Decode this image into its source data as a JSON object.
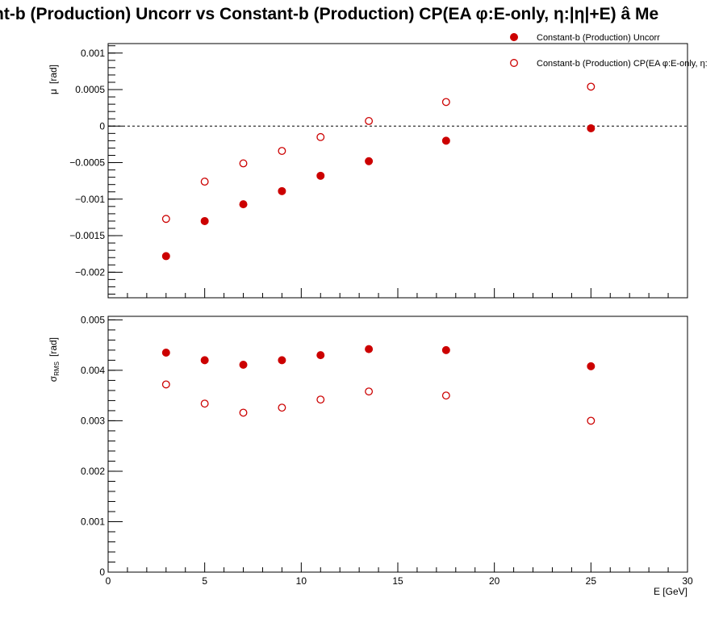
{
  "chart_data": {
    "type": "scatter",
    "title": "nt-b (Production) Uncorr vs Constant-b (Production) CP(EA φ:E-only, η:|η|+E)  â  Me",
    "xlabel": "E  [GeV]",
    "xlim": [
      0,
      30
    ],
    "x_ticks": [
      "0",
      "5",
      "10",
      "15",
      "20",
      "25",
      "30"
    ],
    "legend_placement": "top-right",
    "marker_color": "#cc0000",
    "series": [
      {
        "name": "Constant-b (Production) Uncorr",
        "marker": "filled-circle"
      },
      {
        "name": "Constant-b (Production) CP(EA φ:E-only, η:",
        "marker": "open-circle"
      }
    ],
    "x": [
      3,
      5,
      7,
      9,
      11,
      13.5,
      17.5,
      25
    ],
    "panels": [
      {
        "ylabel_main": "μ",
        "ylabel_unit": "[rad]",
        "ylim": [
          -0.00235,
          0.00113
        ],
        "y_ticks": [
          {
            "v": 0.001,
            "label": "0.001"
          },
          {
            "v": 0.0005,
            "label": "0.0005"
          },
          {
            "v": 0,
            "label": "0"
          },
          {
            "v": -0.0005,
            "label": "−0.0005"
          },
          {
            "v": -0.001,
            "label": "−0.001"
          },
          {
            "v": -0.0015,
            "label": "−0.0015"
          },
          {
            "v": -0.002,
            "label": "−0.002"
          }
        ],
        "zero_line": true,
        "values": [
          [
            -0.00178,
            -0.0013,
            -0.00107,
            -0.00089,
            -0.00068,
            -0.00048,
            -0.0002,
            -3e-05
          ],
          [
            -0.00127,
            -0.00076,
            -0.00051,
            -0.00034,
            -0.00015,
            7e-05,
            0.00033,
            0.00054
          ]
        ]
      },
      {
        "ylabel_main": "σ",
        "ylabel_sub": "RMS",
        "ylabel_unit": "[rad]",
        "ylim": [
          0,
          0.00507
        ],
        "y_ticks": [
          {
            "v": 0.005,
            "label": "0.005"
          },
          {
            "v": 0.004,
            "label": "0.004"
          },
          {
            "v": 0.003,
            "label": "0.003"
          },
          {
            "v": 0.002,
            "label": "0.002"
          },
          {
            "v": 0.001,
            "label": "0.001"
          },
          {
            "v": 0,
            "label": "0"
          }
        ],
        "zero_line": false,
        "values": [
          [
            0.00435,
            0.0042,
            0.00411,
            0.0042,
            0.0043,
            0.00442,
            0.0044,
            0.00408
          ],
          [
            0.00372,
            0.00334,
            0.00316,
            0.00326,
            0.00342,
            0.00358,
            0.0035,
            0.003
          ]
        ]
      }
    ]
  }
}
